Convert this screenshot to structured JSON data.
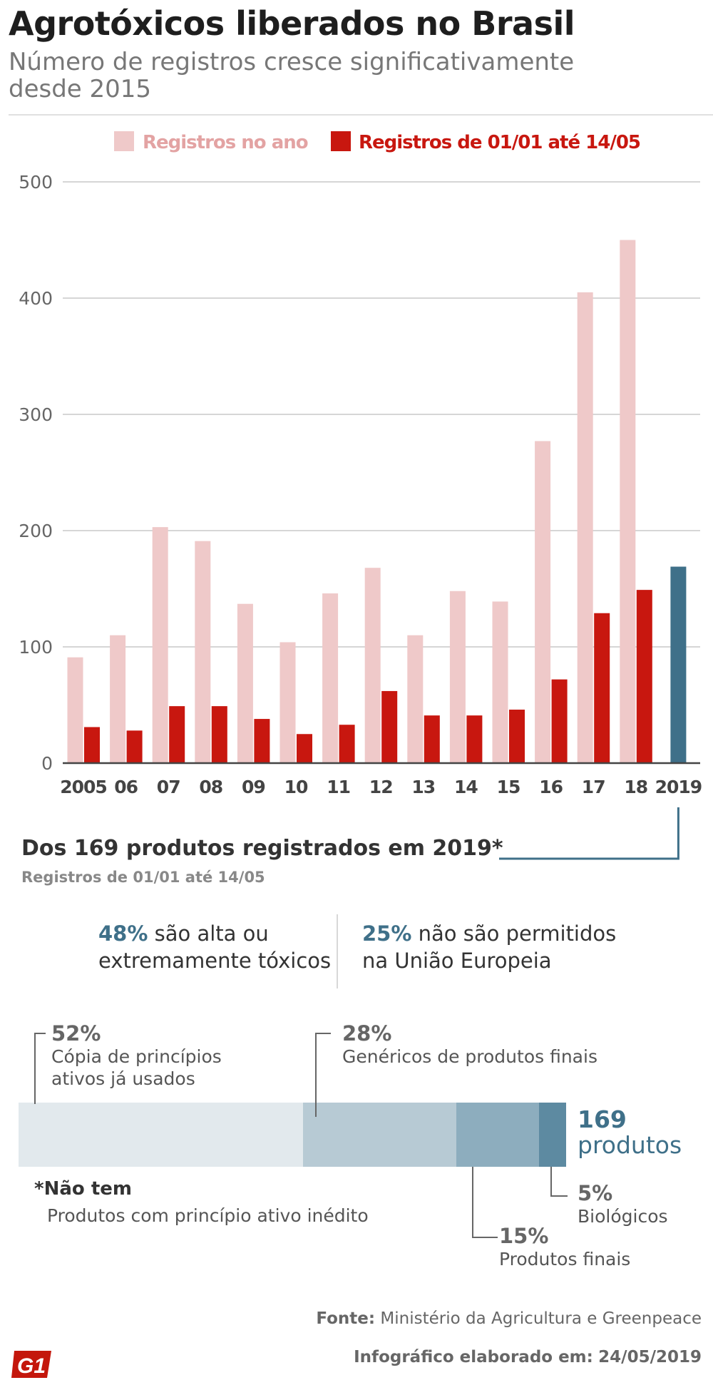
{
  "header": {
    "title": "Agrotóxicos liberados no Brasil",
    "subtitle": "Número de registros cresce significativamente desde 2015"
  },
  "colors": {
    "year_total": "#efc9c9",
    "partial_period": "#c8170f",
    "highlight_2019": "#3f7089",
    "seg1": "#e2e9ed",
    "seg2": "#b7cad4",
    "seg3": "#8dadbe",
    "seg4": "#5d8aa1"
  },
  "chart_data": {
    "type": "bar",
    "categories": [
      "2005",
      "06",
      "07",
      "08",
      "09",
      "10",
      "11",
      "12",
      "13",
      "14",
      "15",
      "16",
      "17",
      "18",
      "2019"
    ],
    "series": [
      {
        "name": "Registros no ano",
        "values": [
          91,
          110,
          203,
          191,
          137,
          104,
          146,
          168,
          110,
          148,
          139,
          277,
          405,
          450,
          null
        ]
      },
      {
        "name": "Registros de 01/01 até 14/05",
        "values": [
          31,
          28,
          49,
          49,
          38,
          25,
          33,
          62,
          41,
          41,
          46,
          72,
          129,
          149,
          169
        ]
      }
    ],
    "yticks": [
      0,
      100,
      200,
      300,
      400,
      500
    ],
    "ylim": [
      0,
      500
    ],
    "legend": "top",
    "grid": true
  },
  "highlight": {
    "title": "Dos 169 produtos registrados em 2019*",
    "subtitle": "Registros de 01/01 até 14/05"
  },
  "stats": [
    {
      "pct": "48%",
      "text_line1": "são alta ou",
      "text_line2": "extremamente tóxicos"
    },
    {
      "pct": "25%",
      "text_line1": "não são permitidos",
      "text_line2": "na União Europeia"
    }
  ],
  "breakdown": {
    "segments": [
      {
        "pct": "52%",
        "value": 52,
        "label_line1": "Cópia de princípios",
        "label_line2": "ativos já usados"
      },
      {
        "pct": "28%",
        "value": 28,
        "label_line1": "Genéricos de produtos finais",
        "label_line2": ""
      },
      {
        "pct": "15%",
        "value": 15,
        "label_line1": "Produtos finais",
        "label_line2": ""
      },
      {
        "pct": "5%",
        "value": 5,
        "label_line1": "Biológicos",
        "label_line2": ""
      }
    ],
    "total_number": "169",
    "total_unit": "produtos"
  },
  "note": {
    "head": "*Não tem",
    "text": "Produtos com princípio ativo inédito"
  },
  "footer": {
    "source_label": "Fonte:",
    "source_text": "Ministério da Agricultura e Greenpeace",
    "credit_label": "Infográfico elaborado em:",
    "credit_date": "24/05/2019",
    "logo_text": "G1"
  }
}
